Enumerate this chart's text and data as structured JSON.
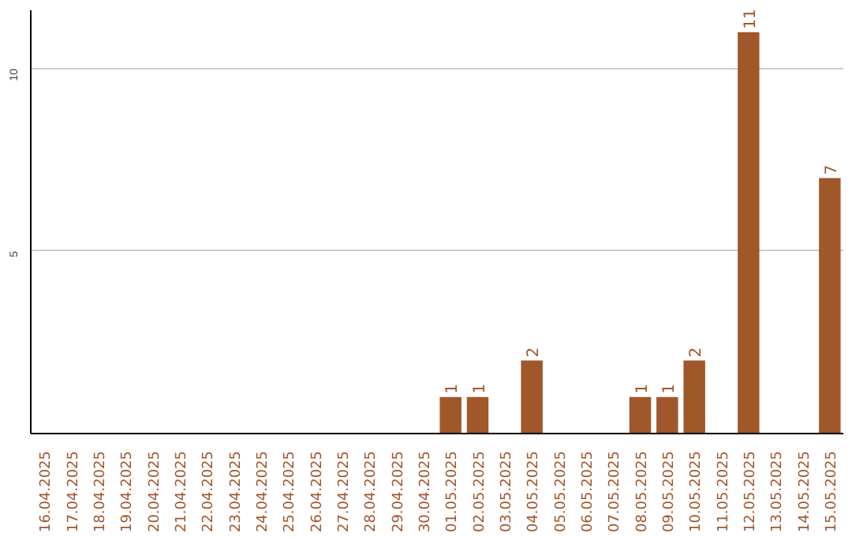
{
  "chart_data": {
    "type": "bar",
    "categories": [
      "16.04.2025",
      "17.04.2025",
      "18.04.2025",
      "19.04.2025",
      "20.04.2025",
      "21.04.2025",
      "22.04.2025",
      "23.04.2025",
      "24.04.2025",
      "25.04.2025",
      "26.04.2025",
      "27.04.2025",
      "28.04.2025",
      "29.04.2025",
      "30.04.2025",
      "01.05.2025",
      "02.05.2025",
      "03.05.2025",
      "04.05.2025",
      "05.05.2025",
      "06.05.2025",
      "07.05.2025",
      "08.05.2025",
      "09.05.2025",
      "10.05.2025",
      "11.05.2025",
      "12.05.2025",
      "13.05.2025",
      "14.05.2025",
      "15.05.2025"
    ],
    "values": [
      0,
      0,
      0,
      0,
      0,
      0,
      0,
      0,
      0,
      0,
      0,
      0,
      0,
      0,
      0,
      1,
      1,
      0,
      2,
      0,
      0,
      0,
      1,
      1,
      2,
      0,
      11,
      0,
      0,
      7
    ],
    "value_labels": [
      null,
      null,
      null,
      null,
      null,
      null,
      null,
      null,
      null,
      null,
      null,
      null,
      null,
      null,
      null,
      "1",
      "1",
      null,
      "2",
      null,
      null,
      null,
      "1",
      "1",
      "2",
      null,
      "11",
      null,
      null,
      "7"
    ],
    "color": "#a0572a",
    "ylim": [
      0,
      11.6
    ],
    "yticks": [
      5,
      10
    ],
    "grid": "y"
  }
}
